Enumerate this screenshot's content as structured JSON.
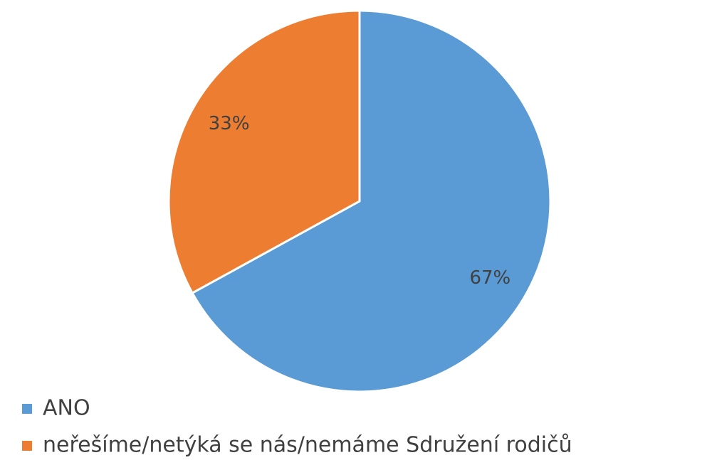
{
  "chart_data": {
    "type": "pie",
    "categories": [
      "ANO",
      "neřešíme/netýká se nás/nemáme Sdružení rodičů"
    ],
    "values": [
      67,
      33
    ],
    "value_labels": [
      "67%",
      "33%"
    ],
    "colors": [
      "#5b9bd5",
      "#ed7d31"
    ],
    "legend": "bottom-left"
  }
}
